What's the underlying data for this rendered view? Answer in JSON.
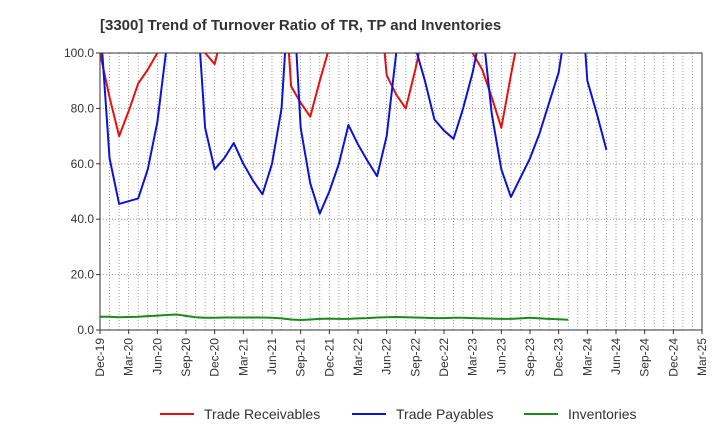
{
  "chart_data": {
    "type": "line",
    "title": "[3300]  Trend of Turnover Ratio of TR, TP and Inventories",
    "xlabel": "",
    "ylabel": "",
    "ylim": [
      0,
      100
    ],
    "yticks": [
      "0.0",
      "20.0",
      "40.0",
      "60.0",
      "80.0",
      "100.0"
    ],
    "xticks": [
      "Dec-19",
      "Mar-20",
      "Jun-20",
      "Sep-20",
      "Dec-20",
      "Mar-21",
      "Jun-21",
      "Sep-21",
      "Dec-21",
      "Mar-22",
      "Jun-22",
      "Sep-22",
      "Dec-22",
      "Mar-23",
      "Jun-23",
      "Sep-23",
      "Dec-23",
      "Mar-24",
      "Jun-24",
      "Sep-24",
      "Dec-24",
      "Mar-25"
    ],
    "grid": true,
    "legend_position": "bottom",
    "colors": {
      "receivables": "#e8100f",
      "payables": "#0a14d8",
      "inventories": "#1b8a1b"
    },
    "series": [
      {
        "name": "Trade Receivables",
        "values": [
          100,
          84,
          70,
          79,
          89,
          94,
          100,
          null,
          null,
          null,
          null,
          100,
          96,
          110,
          null,
          null,
          null,
          null,
          null,
          140,
          88,
          82,
          77,
          90,
          102,
          null,
          null,
          null,
          null,
          130,
          92,
          85,
          80,
          94,
          110,
          null,
          null,
          null,
          null,
          100,
          94,
          84,
          73,
          92,
          110,
          null,
          null,
          null,
          null,
          null,
          null,
          null,
          null,
          null,
          null,
          null,
          null,
          null,
          null,
          null,
          null,
          null,
          null,
          null,
          null
        ]
      },
      {
        "name": "Trade Payables",
        "values": [
          112,
          62,
          45.5,
          46.5,
          47.5,
          58,
          75,
          103,
          140,
          null,
          125,
          73,
          58,
          62,
          67.5,
          60,
          54,
          49,
          60,
          80,
          135,
          73,
          53,
          42,
          50,
          60,
          74,
          67,
          61,
          55.5,
          70,
          100,
          140,
          102,
          90,
          76,
          72,
          69,
          80,
          93,
          110,
          78,
          58,
          48,
          55,
          62,
          71,
          82,
          93,
          115,
          140,
          90,
          78,
          65,
          null,
          null,
          null,
          null,
          null,
          null,
          null,
          null,
          null,
          null
        ]
      },
      {
        "name": "Inventories",
        "values": [
          4.8,
          4.8,
          4.6,
          4.7,
          4.8,
          5,
          5.2,
          5.4,
          5.6,
          5.1,
          4.6,
          4.4,
          4.4,
          4.5,
          4.5,
          4.5,
          4.5,
          4.5,
          4.4,
          4.2,
          3.8,
          3.6,
          3.8,
          4,
          4.1,
          4,
          4,
          4.2,
          4.3,
          4.5,
          4.6,
          4.7,
          4.6,
          4.5,
          4.4,
          4.3,
          4.3,
          4.4,
          4.4,
          4.3,
          4.2,
          4.1,
          4,
          4,
          4.2,
          4.4,
          4.2,
          4.0,
          3.9,
          3.7,
          null,
          null,
          null,
          null,
          null,
          null,
          null,
          null,
          null,
          null,
          null,
          null,
          null,
          null
        ]
      }
    ]
  }
}
